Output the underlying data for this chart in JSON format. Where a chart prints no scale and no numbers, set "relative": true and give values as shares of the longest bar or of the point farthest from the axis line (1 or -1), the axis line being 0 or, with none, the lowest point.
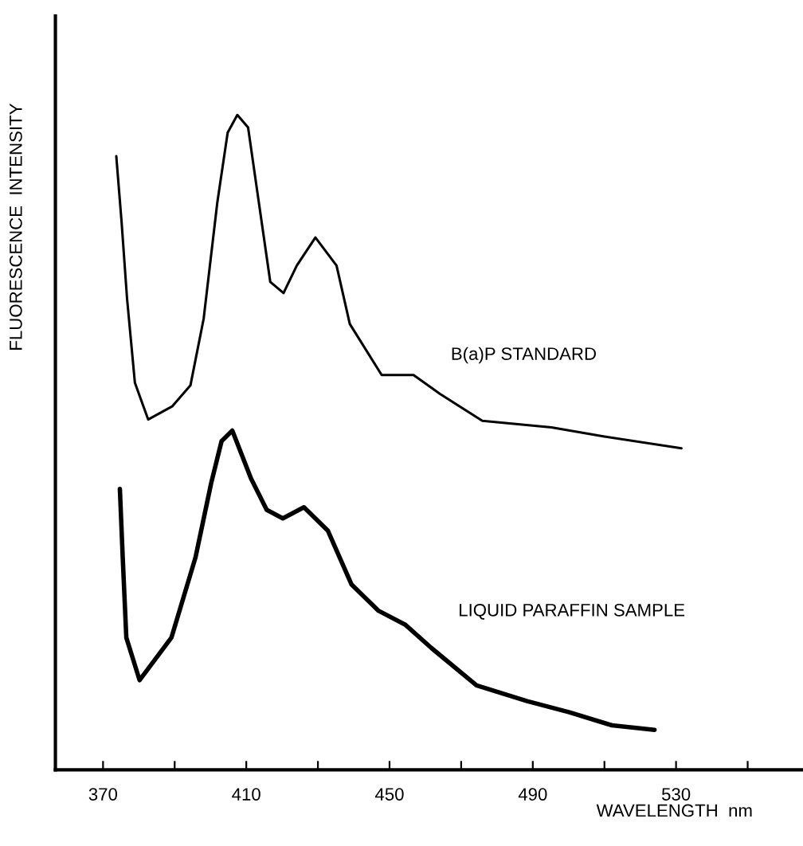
{
  "chart_data": {
    "type": "line",
    "relative": true,
    "xlabel": "WAVELENGTH  nm",
    "ylabel": "FLUORESCENCE  INTENSITY",
    "xlim": [
      356.7,
      565
    ],
    "xticks": [
      370,
      {
        "value": 390,
        "label": null
      },
      410,
      {
        "value": 430,
        "label": null
      },
      450,
      {
        "value": 470,
        "label": null
      },
      490,
      {
        "value": 510,
        "label": null
      },
      530,
      {
        "value": 550,
        "label": null
      }
    ],
    "grid": false,
    "legend": false,
    "marker": "none",
    "line_style": "solid",
    "series": [
      {
        "name": "B(a)P STANDARD",
        "color": "#000000",
        "x": [
          373.7,
          375.2,
          376.7,
          378.9,
          382.6,
          389.3,
          394.4,
          398.1,
          401.9,
          404.8,
          407.5,
          410.5,
          413.7,
          416.7,
          420.4,
          424.1,
          429.3,
          435.2,
          438.9,
          447.8,
          456.7,
          464.1,
          475.9,
          495.2,
          510,
          531.5
        ],
        "values": [
          0.937,
          0.835,
          0.72,
          0.591,
          0.535,
          0.555,
          0.587,
          0.689,
          0.866,
          0.973,
          1.0,
          0.981,
          0.859,
          0.745,
          0.728,
          0.77,
          0.813,
          0.77,
          0.681,
          0.603,
          0.603,
          0.574,
          0.533,
          0.523,
          0.509,
          0.491
        ]
      },
      {
        "name": "LIQUID PARAFFIN SAMPLE",
        "color": "#000000",
        "x": [
          374.7,
          375.5,
          376.5,
          380.2,
          389.1,
          395.8,
          400.2,
          403.1,
          406.1,
          411.3,
          415.7,
          420.2,
          426.1,
          432.8,
          439.4,
          446.9,
          454.3,
          461.7,
          474.3,
          488.4,
          500.2,
          512.1,
          524.0
        ],
        "values": [
          0.429,
          0.324,
          0.202,
          0.137,
          0.202,
          0.324,
          0.438,
          0.502,
          0.518,
          0.445,
          0.397,
          0.384,
          0.401,
          0.365,
          0.283,
          0.243,
          0.222,
          0.186,
          0.129,
          0.105,
          0.088,
          0.068,
          0.061
        ]
      }
    ]
  }
}
